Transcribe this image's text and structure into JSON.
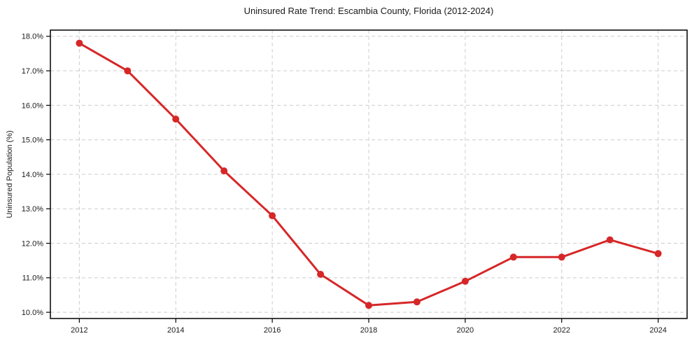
{
  "page": {
    "background": "#ffffff"
  },
  "chart_data": {
    "type": "line",
    "title": "Uninsured Rate Trend: Escambia County, Florida (2012-2024)",
    "xlabel": "",
    "ylabel": "Uninsured Population (%)",
    "x": [
      2012,
      2013,
      2014,
      2015,
      2016,
      2017,
      2018,
      2019,
      2020,
      2021,
      2022,
      2023,
      2024
    ],
    "values": [
      17.8,
      17.0,
      15.6,
      14.1,
      12.8,
      11.1,
      10.2,
      10.3,
      10.9,
      11.6,
      11.6,
      12.1,
      11.7
    ],
    "xlim": [
      2011.4,
      2024.6
    ],
    "ylim": [
      9.82,
      18.18
    ],
    "xticks": {
      "values": [
        2012,
        2014,
        2016,
        2018,
        2020,
        2022,
        2024
      ],
      "labels": [
        "2012",
        "2014",
        "2016",
        "2018",
        "2020",
        "2022",
        "2024"
      ]
    },
    "yticks": {
      "values": [
        10,
        11,
        12,
        13,
        14,
        15,
        16,
        17,
        18
      ],
      "labels": [
        "10.0%",
        "11.0%",
        "12.0%",
        "13.0%",
        "14.0%",
        "15.0%",
        "16.0%",
        "17.0%",
        "18.0%"
      ]
    },
    "grid": true,
    "legend_position": "none",
    "colors": {
      "line": "#d62728",
      "marker": "#d62728",
      "grid": "#cccccc",
      "spine": "#000000",
      "text": "#1a1a1a"
    },
    "marker": "circle"
  }
}
